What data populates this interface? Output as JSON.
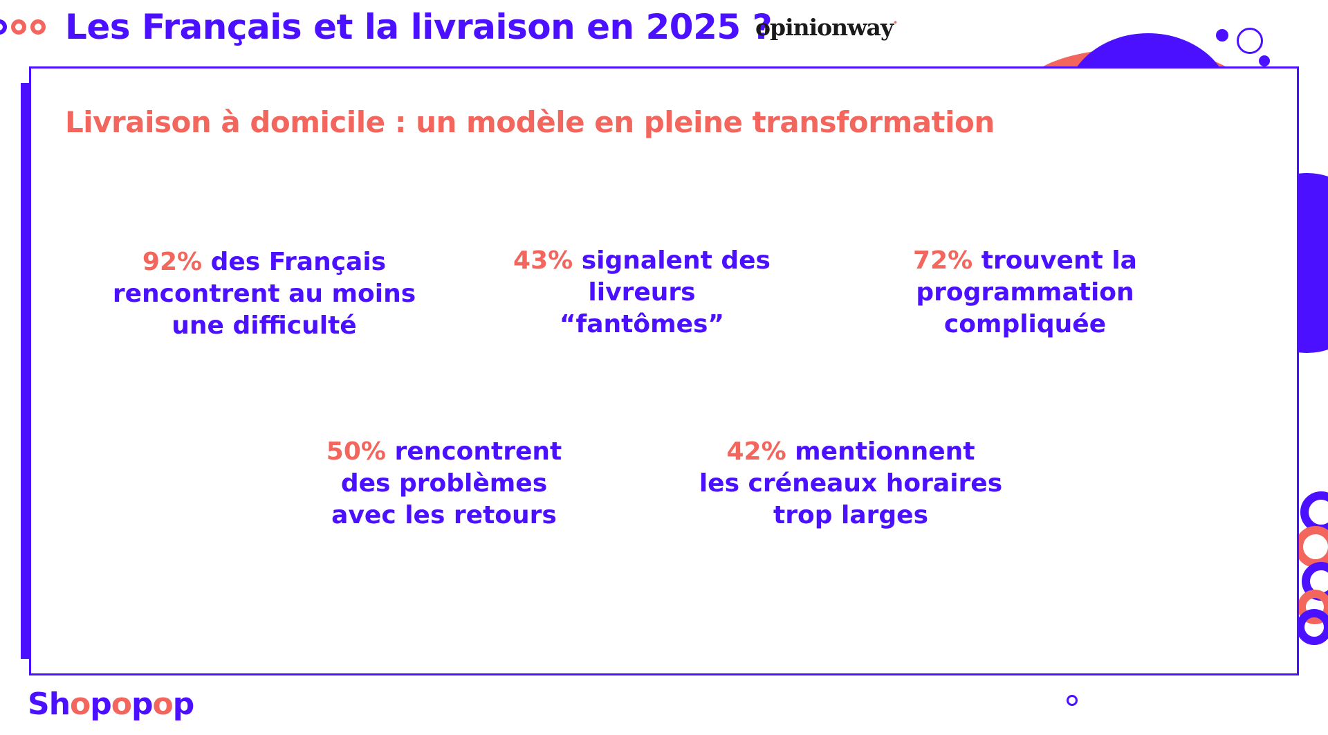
{
  "header": {
    "title": "Les Français et la livraison en 2025 ?",
    "partner_logo": "opinionway",
    "partner_logo_dot": "·"
  },
  "slide": {
    "subtitle": "Livraison à domicile : un modèle en pleine transformation",
    "stats": [
      {
        "pct": "92%",
        "rest1": " des Français",
        "line2": "rencontrent au moins",
        "line3": "une difficulté"
      },
      {
        "pct": "43%",
        "rest1": " signalent des",
        "line2": "livreurs",
        "line3": "“fantômes”"
      },
      {
        "pct": "72%",
        "rest1": " trouvent la",
        "line2": "programmation",
        "line3": "compliquée"
      },
      {
        "pct": "50%",
        "rest1": " rencontrent",
        "line2": "des problèmes",
        "line3": "avec les retours"
      },
      {
        "pct": "42%",
        "rest1": " mentionnent",
        "line2": "les créneaux horaires",
        "line3": "trop larges"
      }
    ]
  },
  "footer": {
    "logo_parts": [
      "Sh",
      "o",
      "p",
      "o",
      "p",
      "o",
      "p"
    ]
  },
  "colors": {
    "primary_purple": "#4a10ff",
    "accent_coral": "#f2665d",
    "background": "#ffffff"
  }
}
